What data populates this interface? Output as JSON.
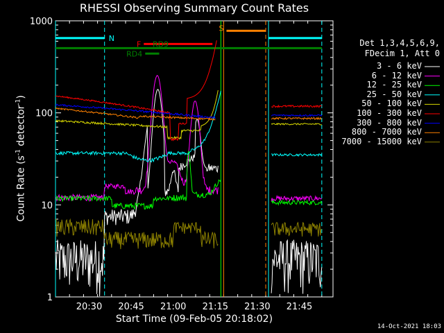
{
  "chart_data": {
    "type": "line",
    "title": "RHESSI Observing Summary Count Rates",
    "xlabel": "Start Time (09-Feb-05 20:18:02)",
    "ylabel_parts": {
      "pre": "Count Rate (s",
      "sup": "-1",
      "post": " detector",
      "sup2": "-1",
      "end": ")"
    },
    "yscale": "log",
    "ylim": [
      1,
      1000
    ],
    "y_ticks": [
      "1",
      "10",
      "100",
      "1000"
    ],
    "xlim_minutes": [
      0,
      99
    ],
    "x_ticks": [
      {
        "label": "20:30",
        "min": 12
      },
      {
        "label": "20:45",
        "min": 27
      },
      {
        "label": "21:00",
        "min": 42
      },
      {
        "label": "21:15",
        "min": 57
      },
      {
        "label": "21:30",
        "min": 72
      },
      {
        "label": "21:45",
        "min": 87
      }
    ],
    "legend_header": [
      "Det 1,3,4,5,6,9,",
      "FDecim 1, Att 0"
    ],
    "series": [
      {
        "name": "3 - 6 keV",
        "color": "#ffffff"
      },
      {
        "name": "6 - 12 keV",
        "color": "#ff00ff"
      },
      {
        "name": "12 - 25 keV",
        "color": "#00ff00"
      },
      {
        "name": "25 - 50 keV",
        "color": "#00ffff"
      },
      {
        "name": "50 - 100 keV",
        "color": "#d8d800"
      },
      {
        "name": "100 - 300 keV",
        "color": "#ff0000"
      },
      {
        "name": "300 - 800 keV",
        "color": "#0000ff"
      },
      {
        "name": "800 - 7000 keV",
        "color": "#ff8000"
      },
      {
        "name": "7000 - 15000 keV",
        "color": "#8c8000"
      }
    ],
    "flags": [
      {
        "label": "N",
        "color": "#00ffff",
        "y": 650,
        "segments": [
          [
            0,
            17.5
          ],
          [
            76,
            95
          ]
        ]
      },
      {
        "label": "S",
        "color": "#ff8000",
        "y": 780,
        "segments": [
          [
            61,
            75
          ]
        ]
      },
      {
        "label": "F",
        "color": "#ff0000",
        "y": 560,
        "segments": [
          [
            31.5,
            56
          ]
        ]
      },
      {
        "label": "RD9",
        "color": "#008000",
        "y": 505,
        "segments": [
          [
            0,
            95
          ]
        ]
      },
      {
        "label": "RD4",
        "color": "#008000",
        "y": 440,
        "segments": [
          [
            32,
            37
          ]
        ]
      }
    ],
    "vertical_markers": [
      {
        "color": "#00ffff",
        "minutes": [
          0,
          17.5,
          76,
          95
        ],
        "dashed": [
          17.5,
          95
        ]
      },
      {
        "color": "#ff8000",
        "minutes": [
          60,
          75
        ],
        "dashed": [
          75
        ]
      },
      {
        "color": "#00ff00",
        "minutes": [
          59
        ],
        "dashed": []
      }
    ]
  },
  "footer": {
    "timestamp": "14-Oct-2021 18:03"
  }
}
